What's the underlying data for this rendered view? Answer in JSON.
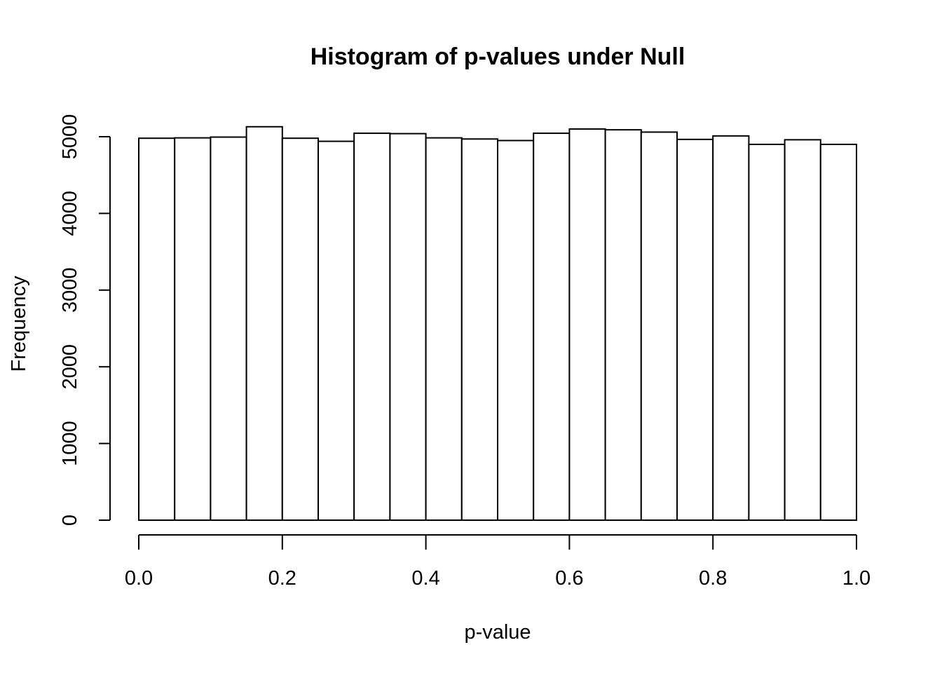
{
  "chart_data": {
    "type": "bar",
    "title": "Histogram of p-values under Null",
    "xlabel": "p-value",
    "ylabel": "Frequency",
    "xlim": [
      0,
      1
    ],
    "ylim": [
      0,
      5000
    ],
    "grid": false,
    "bin_width": 0.05,
    "bin_edges": [
      0.0,
      0.05,
      0.1,
      0.15,
      0.2,
      0.25,
      0.3,
      0.35,
      0.4,
      0.45,
      0.5,
      0.55,
      0.6,
      0.65,
      0.7,
      0.75,
      0.8,
      0.85,
      0.9,
      0.95,
      1.0
    ],
    "values": [
      4980,
      4985,
      4995,
      5130,
      4980,
      4940,
      5045,
      5040,
      4985,
      4970,
      4950,
      5045,
      5100,
      5090,
      5060,
      4965,
      5010,
      4900,
      4960,
      4900
    ],
    "x_ticks": [
      {
        "value": 0.0,
        "label": "0.0"
      },
      {
        "value": 0.2,
        "label": "0.2"
      },
      {
        "value": 0.4,
        "label": "0.4"
      },
      {
        "value": 0.6,
        "label": "0.6"
      },
      {
        "value": 0.8,
        "label": "0.8"
      },
      {
        "value": 1.0,
        "label": "1.0"
      }
    ],
    "y_ticks": [
      {
        "value": 0,
        "label": "0"
      },
      {
        "value": 1000,
        "label": "1000"
      },
      {
        "value": 2000,
        "label": "2000"
      },
      {
        "value": 3000,
        "label": "3000"
      },
      {
        "value": 4000,
        "label": "4000"
      },
      {
        "value": 5000,
        "label": "5000"
      }
    ],
    "bar_fill": "#ffffff",
    "bar_stroke": "#000000"
  }
}
